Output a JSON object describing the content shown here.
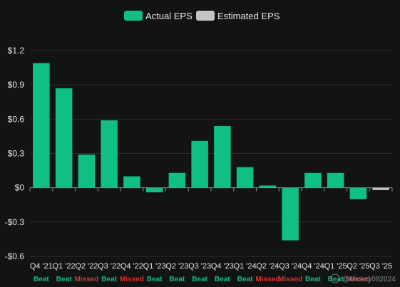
{
  "chart_data": {
    "type": "bar",
    "title": "",
    "xlabel": "",
    "ylabel": "",
    "ylim": [
      -0.6,
      1.2
    ],
    "y_ticks": [
      -0.6,
      -0.3,
      0,
      0.3,
      0.6,
      0.9,
      1.2
    ],
    "y_tick_labels": [
      "-$0.6",
      "-$0.3",
      "$0",
      "$0.3",
      "$0.6",
      "$0.9",
      "$1.2"
    ],
    "grid": true,
    "legend_position": "top-center",
    "categories": [
      "Q4 '21",
      "Q1 '22",
      "Q2 '22",
      "Q3 '22",
      "Q4 '22",
      "Q1 '23",
      "Q2 '23",
      "Q3 '23",
      "Q4 '23",
      "Q1 '24",
      "Q2 '24",
      "Q3 '24",
      "Q4 '24",
      "Q1 '25",
      "Q2 '25",
      "Q3 '25"
    ],
    "series": [
      {
        "name": "Actual EPS",
        "color": "#10bf84",
        "values": [
          1.09,
          0.87,
          0.29,
          0.59,
          0.1,
          -0.04,
          0.13,
          0.41,
          0.54,
          0.18,
          0.02,
          -0.46,
          0.13,
          0.13,
          -0.1,
          null
        ]
      },
      {
        "name": "Estimated EPS",
        "color": "#c4c4c4",
        "values": [
          null,
          null,
          null,
          null,
          null,
          null,
          null,
          null,
          null,
          null,
          null,
          null,
          null,
          null,
          null,
          -0.02
        ]
      }
    ],
    "results": [
      "Beat",
      "Beat",
      "Missed",
      "Beat",
      "Missed",
      "Beat",
      "Beat",
      "Beat",
      "Beat",
      "Beat",
      "Missed",
      "Missed",
      "Beat",
      "Beat",
      "Missed",
      ""
    ],
    "result_colors": {
      "Beat": "#10bf84",
      "Missed": "#e0302c"
    }
  },
  "watermark": "@Mickey082024"
}
